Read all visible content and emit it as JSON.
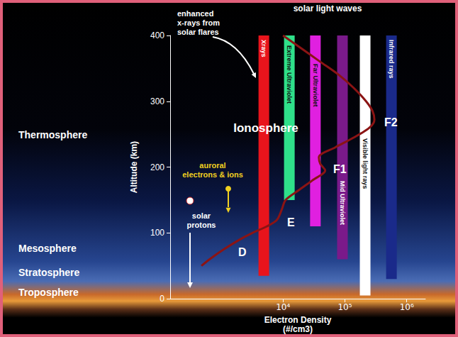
{
  "chart_data": {
    "type": "line",
    "x": [
      480,
      650,
      1100,
      2000,
      3200,
      5500,
      8000,
      9500,
      11000,
      18000,
      30000,
      48000,
      40000,
      38000,
      70000,
      140000,
      250000,
      300000,
      280000,
      220000,
      140000,
      80000,
      40000,
      20000,
      10000
    ],
    "values": [
      50,
      60,
      75,
      90,
      100,
      110,
      120,
      135,
      150,
      165,
      180,
      195,
      205,
      215,
      230,
      245,
      260,
      272,
      285,
      300,
      320,
      340,
      360,
      380,
      400
    ],
    "color": "#8b1414",
    "xlabel": "Electron Density (#/cm3)",
    "ylabel": "Altitude (km)",
    "log": "x",
    "xlim": [
      150,
      2000000
    ],
    "xticks": [
      {
        "value": 10000,
        "label": "10⁴"
      },
      {
        "value": 100000,
        "label": "10⁵"
      },
      {
        "value": 1000000,
        "label": "10⁶"
      }
    ],
    "ylim": [
      0,
      400
    ],
    "yticks": [
      0,
      100,
      200,
      300,
      400
    ],
    "grid": false,
    "bands_title": "solar light waves",
    "bands": [
      {
        "name": "Xrays",
        "color": "#e8141c",
        "bottom": 35,
        "top": 400
      },
      {
        "name": "Extreme Ultraviolet",
        "color": "#2fe08a",
        "bottom": 150,
        "top": 400
      },
      {
        "name": "Far Ultraviolet",
        "color": "#e020e0",
        "bottom": 110,
        "top": 400
      },
      {
        "name": "Mid Ultraviolet",
        "color": "#7a1a8a",
        "bottom": 60,
        "top": 400
      },
      {
        "name": "Visible light rays",
        "color": "#ffffff",
        "bottom": 5,
        "top": 400
      },
      {
        "name": "Infrared rays",
        "color": "#1a2a8a",
        "bottom": 30,
        "top": 400
      }
    ],
    "layer_labels": [
      "D",
      "E",
      "F1",
      "F2"
    ],
    "region_label": "Ionosphere",
    "atmosphere_labels": [
      "Thermosphere",
      "Mesosphere",
      "Stratosphere",
      "Troposphere"
    ],
    "annotations": [
      "enhanced x-rays from solar flares",
      "auroral electrons & ions",
      "solar protons"
    ]
  }
}
